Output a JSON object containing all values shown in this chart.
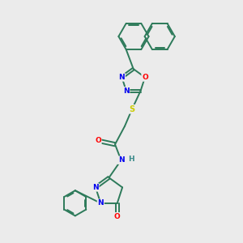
{
  "bg_color": "#ebebeb",
  "bond_color": "#2d7a5a",
  "atom_colors": {
    "N": "#0000ee",
    "O": "#ff0000",
    "S": "#cccc00",
    "H": "#3a8a8a",
    "C": "#2d7a5a"
  },
  "fig_width": 3.0,
  "fig_height": 3.0,
  "dpi": 100
}
